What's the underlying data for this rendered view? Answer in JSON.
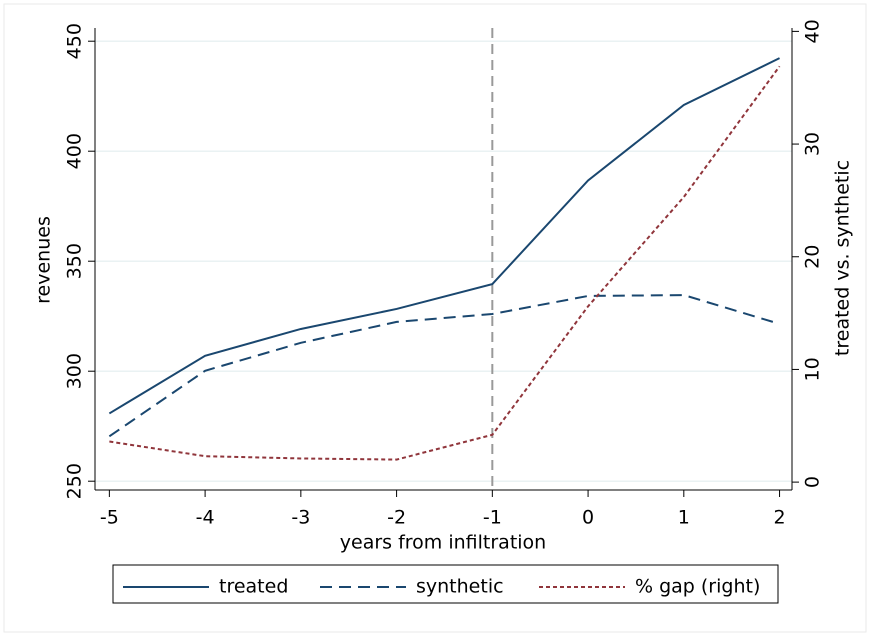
{
  "chart_data": {
    "type": "line",
    "xlabel": "years from infiltration",
    "ylabel": "revenues",
    "y2label": "treated vs. synthetic",
    "x": [
      -5,
      -4,
      -3,
      -2,
      -1,
      0,
      1,
      2
    ],
    "xlim": [
      -5.15,
      2.13
    ],
    "xticks": [
      -5,
      -4,
      -3,
      -2,
      -1,
      0,
      1,
      2
    ],
    "ylim": [
      246,
      456
    ],
    "yticks": [
      250,
      300,
      350,
      400,
      450
    ],
    "y2lim": [
      -0.7,
      40.3
    ],
    "y2ticks": [
      0,
      10,
      20,
      30,
      40
    ],
    "grid": true,
    "vline_x": -1,
    "legend": "bottom",
    "series": [
      {
        "name": "treated",
        "color": "#1a476f",
        "dash": "solid",
        "values": [
          280.8,
          307,
          319.2,
          328.3,
          339.6,
          386.7,
          421,
          442.3
        ]
      },
      {
        "name": "synthetic",
        "color": "#1a476f",
        "dash": "dashed",
        "values": [
          270.4,
          300.2,
          312.9,
          322.4,
          326,
          334.2,
          334.6,
          321.5
        ]
      },
      {
        "name": "% gap (right)",
        "color": "#90353b",
        "dash": "dotted",
        "axis": "y2",
        "values": [
          3.6,
          2.3,
          2.1,
          2.0,
          4.2,
          15.6,
          25.3,
          36.9
        ]
      }
    ]
  }
}
